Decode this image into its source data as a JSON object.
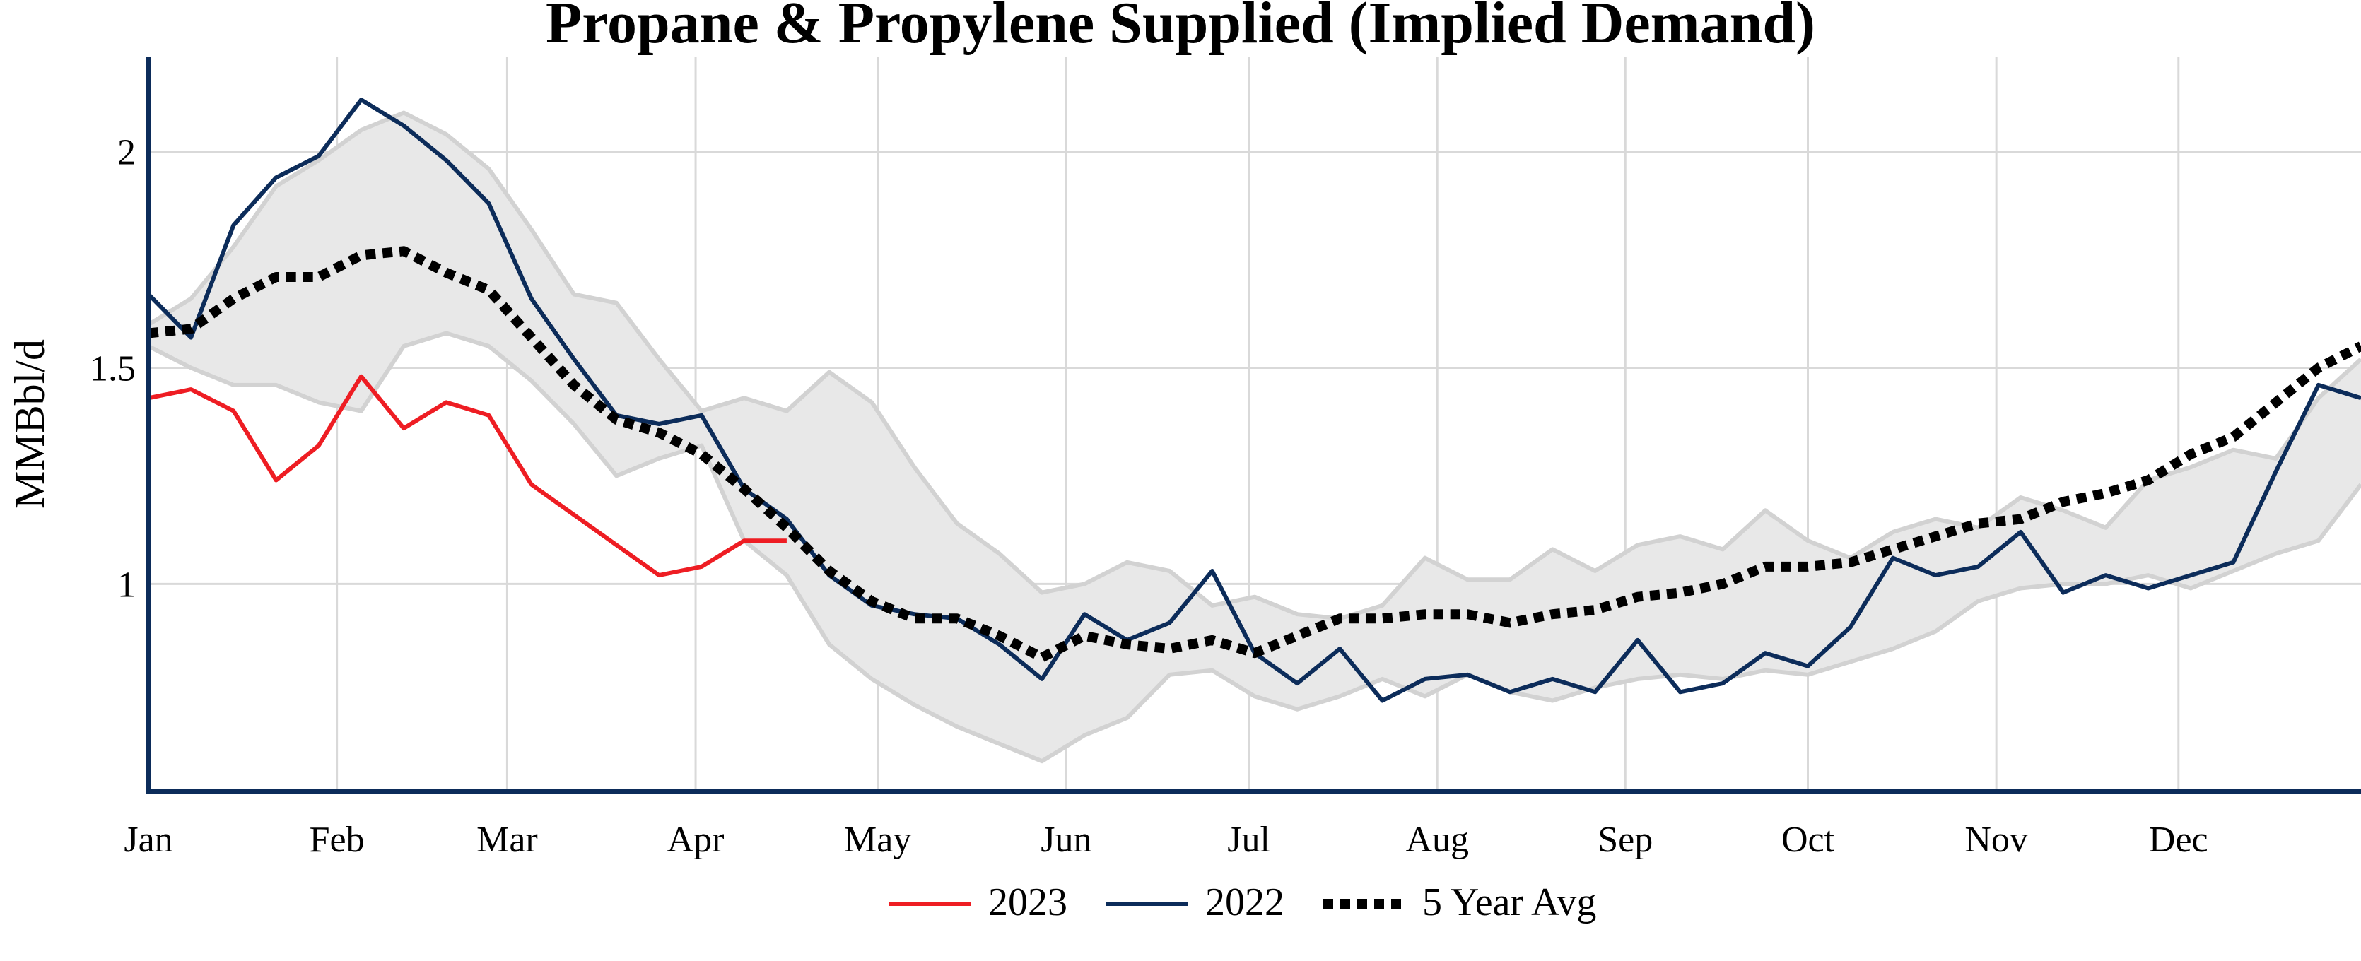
{
  "chart_data": {
    "type": "line",
    "title": "Propane & Propylene Supplied (Implied Demand)",
    "xlabel": "",
    "ylabel": "MMBbl/d",
    "x_ticks": [
      "Jan",
      "Feb",
      "Mar",
      "Apr",
      "May",
      "Jun",
      "Jul",
      "Aug",
      "Sep",
      "Oct",
      "Nov",
      "Dec"
    ],
    "y_ticks": [
      "1",
      "1.5",
      "2"
    ],
    "x_unit": "week of year",
    "xlim": [
      1,
      53
    ],
    "ylim": [
      0.52,
      2.22
    ],
    "grid": true,
    "legend_position": "bottom-center",
    "range_band": {
      "color": "#e8e8e8",
      "edge_color": "#d2d2d2",
      "x": [
        1,
        2,
        3,
        4,
        5,
        6,
        7,
        8,
        9,
        10,
        11,
        12,
        13,
        14,
        15,
        16,
        17,
        18,
        19,
        20,
        21,
        22,
        23,
        24,
        25,
        26,
        27,
        28,
        29,
        30,
        31,
        32,
        33,
        34,
        35,
        36,
        37,
        38,
        39,
        40,
        41,
        42,
        43,
        44,
        45,
        46,
        47,
        48,
        49,
        50,
        51,
        52,
        53
      ],
      "upper": [
        1.6,
        1.66,
        1.78,
        1.92,
        1.98,
        2.05,
        2.09,
        2.04,
        1.96,
        1.82,
        1.67,
        1.65,
        1.52,
        1.4,
        1.43,
        1.4,
        1.49,
        1.42,
        1.27,
        1.14,
        1.07,
        0.98,
        1.0,
        1.05,
        1.03,
        0.95,
        0.97,
        0.93,
        0.92,
        0.95,
        1.06,
        1.01,
        1.01,
        1.08,
        1.03,
        1.09,
        1.11,
        1.08,
        1.17,
        1.1,
        1.06,
        1.12,
        1.15,
        1.13,
        1.2,
        1.17,
        1.13,
        1.24,
        1.27,
        1.31,
        1.29,
        1.43,
        1.52
      ],
      "lower": [
        1.55,
        1.5,
        1.46,
        1.46,
        1.42,
        1.4,
        1.55,
        1.58,
        1.55,
        1.47,
        1.37,
        1.25,
        1.29,
        1.32,
        1.1,
        1.02,
        0.86,
        0.78,
        0.72,
        0.67,
        0.63,
        0.59,
        0.65,
        0.69,
        0.79,
        0.8,
        0.74,
        0.71,
        0.74,
        0.78,
        0.74,
        0.79,
        0.75,
        0.73,
        0.76,
        0.78,
        0.79,
        0.78,
        0.8,
        0.79,
        0.82,
        0.85,
        0.89,
        0.96,
        0.99,
        1.0,
        1.0,
        1.02,
        0.99,
        1.03,
        1.07,
        1.1,
        1.23
      ]
    },
    "series": [
      {
        "name": "2023",
        "color": "#ee1d23",
        "style": "solid",
        "x": [
          1,
          2,
          3,
          4,
          5,
          6,
          7,
          8,
          9,
          10,
          11,
          12,
          13,
          14,
          15,
          16,
          17,
          18
        ],
        "values": [
          1.43,
          1.45,
          1.4,
          1.24,
          1.32,
          1.48,
          1.36,
          1.42,
          1.39,
          1.23,
          1.16,
          1.09,
          1.02,
          1.04,
          1.1,
          1.1,
          null,
          null
        ]
      },
      {
        "name": "2022",
        "color": "#0c2c5a",
        "style": "solid",
        "x": [
          1,
          2,
          3,
          4,
          5,
          6,
          7,
          8,
          9,
          10,
          11,
          12,
          13,
          14,
          15,
          16,
          17,
          18,
          19,
          20,
          21,
          22,
          23,
          24,
          25,
          26,
          27,
          28,
          29,
          30,
          31,
          32,
          33,
          34,
          35,
          36,
          37,
          38,
          39,
          40,
          41,
          42,
          43,
          44,
          45,
          46,
          47,
          48,
          49,
          50,
          51,
          52,
          53
        ],
        "values": [
          1.67,
          1.57,
          1.83,
          1.94,
          1.99,
          2.12,
          2.06,
          1.98,
          1.88,
          1.66,
          1.52,
          1.39,
          1.37,
          1.39,
          1.22,
          1.15,
          1.02,
          0.95,
          0.93,
          0.92,
          0.86,
          0.78,
          0.93,
          0.87,
          0.91,
          1.03,
          0.84,
          0.77,
          0.85,
          0.73,
          0.78,
          0.79,
          0.75,
          0.78,
          0.75,
          0.87,
          0.75,
          0.77,
          0.84,
          0.81,
          0.9,
          1.06,
          1.02,
          1.04,
          1.12,
          0.98,
          1.02,
          0.99,
          1.02,
          1.05,
          1.26,
          1.46,
          1.43
        ]
      },
      {
        "name": "5 Year Avg",
        "color": "#000000",
        "style": "dotted",
        "x": [
          1,
          2,
          3,
          4,
          5,
          6,
          7,
          8,
          9,
          10,
          11,
          12,
          13,
          14,
          15,
          16,
          17,
          18,
          19,
          20,
          21,
          22,
          23,
          24,
          25,
          26,
          27,
          28,
          29,
          30,
          31,
          32,
          33,
          34,
          35,
          36,
          37,
          38,
          39,
          40,
          41,
          42,
          43,
          44,
          45,
          46,
          47,
          48,
          49,
          50,
          51,
          52,
          53
        ],
        "values": [
          1.58,
          1.59,
          1.66,
          1.71,
          1.71,
          1.76,
          1.77,
          1.72,
          1.68,
          1.57,
          1.46,
          1.38,
          1.35,
          1.3,
          1.22,
          1.13,
          1.03,
          0.96,
          0.92,
          0.92,
          0.88,
          0.83,
          0.88,
          0.86,
          0.85,
          0.87,
          0.84,
          0.88,
          0.92,
          0.92,
          0.93,
          0.93,
          0.91,
          0.93,
          0.94,
          0.97,
          0.98,
          1.0,
          1.04,
          1.04,
          1.05,
          1.08,
          1.11,
          1.14,
          1.15,
          1.19,
          1.21,
          1.24,
          1.3,
          1.34,
          1.42,
          1.5,
          1.55
        ]
      }
    ]
  }
}
